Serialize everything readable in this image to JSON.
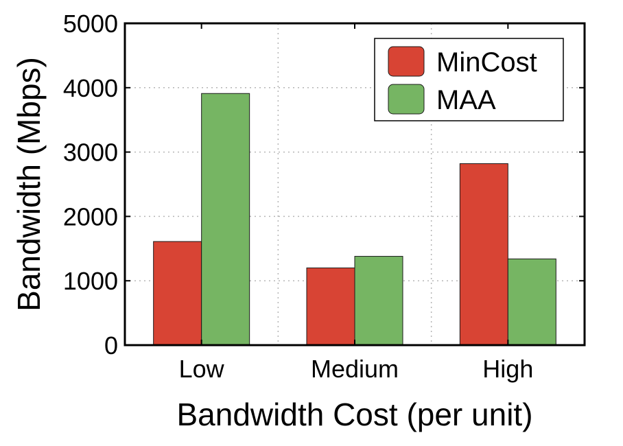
{
  "chart_data": {
    "type": "bar",
    "title": "",
    "xlabel": "Bandwidth Cost (per unit)",
    "ylabel": "Bandwidth (Mbps)",
    "categories": [
      "Low",
      "Medium",
      "High"
    ],
    "series": [
      {
        "name": "MinCost",
        "values": [
          1610,
          1200,
          2820
        ],
        "color": "#d84434"
      },
      {
        "name": "MAA",
        "values": [
          3910,
          1380,
          1340
        ],
        "color": "#76b563"
      }
    ],
    "ylim": [
      0,
      5000
    ],
    "yticks": [
      0,
      1000,
      2000,
      3000,
      4000,
      5000
    ],
    "grid": true,
    "legend": "top-right"
  }
}
